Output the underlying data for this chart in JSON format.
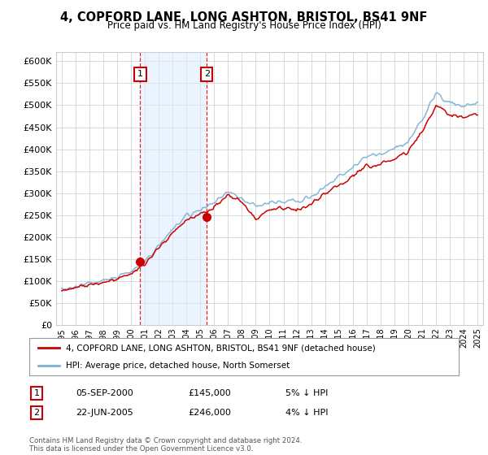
{
  "title": "4, COPFORD LANE, LONG ASHTON, BRISTOL, BS41 9NF",
  "subtitle": "Price paid vs. HM Land Registry's House Price Index (HPI)",
  "background_color": "#ffffff",
  "plot_bg_color": "#ffffff",
  "grid_color": "#cccccc",
  "hpi_line_color": "#7ab0d4",
  "price_line_color": "#cc0000",
  "shade_color": "#ddeeff",
  "purchase1_date": 2000.67,
  "purchase1_price": 145000,
  "purchase2_date": 2005.47,
  "purchase2_price": 246000,
  "ymin": 0,
  "ymax": 620000,
  "ytick_step": 50000,
  "xmin": 1994.6,
  "xmax": 2025.4,
  "legend_line1": "4, COPFORD LANE, LONG ASHTON, BRISTOL, BS41 9NF (detached house)",
  "legend_line2": "HPI: Average price, detached house, North Somerset",
  "table_row1_num": "1",
  "table_row1_date": "05-SEP-2000",
  "table_row1_price": "£145,000",
  "table_row1_hpi": "5% ↓ HPI",
  "table_row2_num": "2",
  "table_row2_date": "22-JUN-2005",
  "table_row2_price": "£246,000",
  "table_row2_hpi": "4% ↓ HPI",
  "footer": "Contains HM Land Registry data © Crown copyright and database right 2024.\nThis data is licensed under the Open Government Licence v3.0.",
  "hpi_points": {
    "1995": 82000,
    "1996": 88000,
    "1997": 95000,
    "1998": 102000,
    "1999": 110000,
    "2000": 122000,
    "2001": 143000,
    "2002": 182000,
    "2003": 218000,
    "2004": 248000,
    "2005": 262000,
    "2006": 278000,
    "2007": 305000,
    "2008": 288000,
    "2009": 268000,
    "2010": 280000,
    "2011": 283000,
    "2012": 282000,
    "2013": 293000,
    "2014": 315000,
    "2015": 338000,
    "2016": 358000,
    "2017": 382000,
    "2018": 390000,
    "2019": 400000,
    "2020": 418000,
    "2021": 468000,
    "2022": 528000,
    "2023": 505000,
    "2024": 498000,
    "2025": 505000
  },
  "price_points": {
    "1995": 80000,
    "1996": 85000,
    "1997": 91000,
    "1998": 98000,
    "1999": 106000,
    "2000": 118000,
    "2001": 138000,
    "2002": 176000,
    "2003": 210000,
    "2004": 238000,
    "2005": 252000,
    "2006": 268000,
    "2007": 295000,
    "2008": 278000,
    "2009": 240000,
    "2010": 262000,
    "2011": 265000,
    "2012": 263000,
    "2013": 275000,
    "2014": 298000,
    "2015": 318000,
    "2016": 338000,
    "2017": 360000,
    "2018": 368000,
    "2019": 378000,
    "2020": 395000,
    "2021": 440000,
    "2022": 500000,
    "2023": 478000,
    "2024": 472000,
    "2025": 480000
  }
}
